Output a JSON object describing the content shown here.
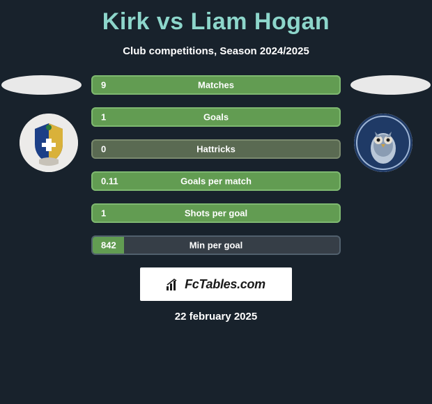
{
  "title": "Kirk vs Liam Hogan",
  "subtitle": "Club competitions, Season 2024/2025",
  "footer_date": "22 february 2025",
  "watermark_text": "FcTables.com",
  "colors": {
    "background": "#18222c",
    "title": "#8dd6cb",
    "text": "#ffffff",
    "watermark_bg": "#ffffff",
    "watermark_text": "#1a1a1a"
  },
  "bars": [
    {
      "label": "Matches",
      "value": "9",
      "fill_pct": 100,
      "bg": "#629c52",
      "fill": "#629c52",
      "border": "#7fb971"
    },
    {
      "label": "Goals",
      "value": "1",
      "fill_pct": 100,
      "bg": "#629c52",
      "fill": "#629c52",
      "border": "#7fb971"
    },
    {
      "label": "Hattricks",
      "value": "0",
      "fill_pct": 0,
      "bg": "#5a6a52",
      "fill": "#629c52",
      "border": "#7a8a6e"
    },
    {
      "label": "Goals per match",
      "value": "0.11",
      "fill_pct": 100,
      "bg": "#629c52",
      "fill": "#629c52",
      "border": "#7fb971"
    },
    {
      "label": "Shots per goal",
      "value": "1",
      "fill_pct": 100,
      "bg": "#629c52",
      "fill": "#629c52",
      "border": "#7fb971"
    },
    {
      "label": "Min per goal",
      "value": "842",
      "fill_pct": 13,
      "bg": "#363e47",
      "fill": "#629c52",
      "border": "#51606d"
    }
  ],
  "badges": {
    "left": {
      "name": "club-badge-left"
    },
    "right": {
      "name": "club-badge-right"
    }
  }
}
